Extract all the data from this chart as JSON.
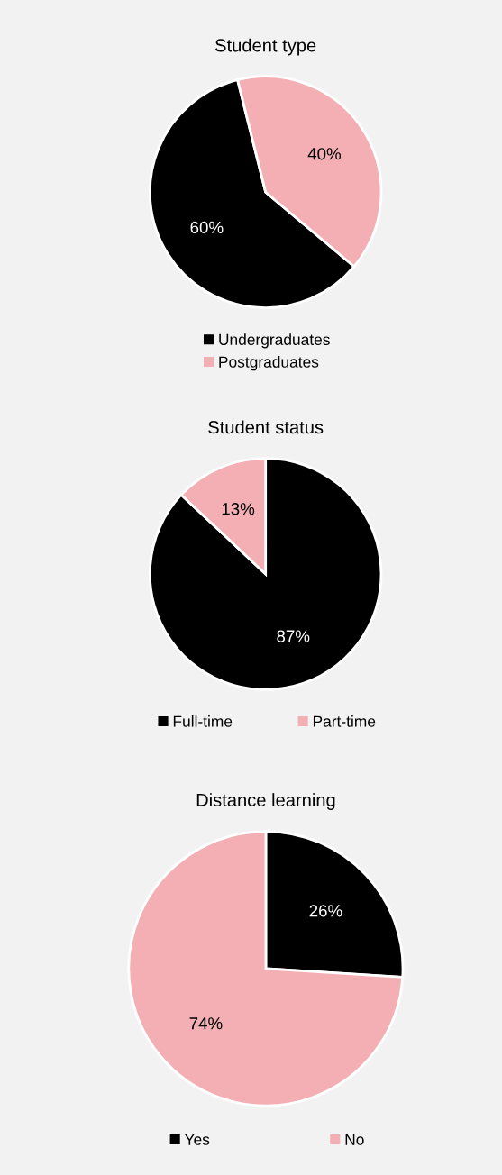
{
  "chart_data": [
    {
      "type": "pie",
      "title": "Student type",
      "categories": [
        "Undergraduates",
        "Postgraduates"
      ],
      "values": [
        60,
        40
      ],
      "colors": [
        "#000000",
        "#f4afb4"
      ],
      "value_labels": [
        "60%",
        "40%"
      ],
      "legend": "bottom"
    },
    {
      "type": "pie",
      "title": "Student status",
      "categories": [
        "Full-time",
        "Part-time"
      ],
      "values": [
        87,
        13
      ],
      "colors": [
        "#000000",
        "#f4afb4"
      ],
      "value_labels": [
        "87%",
        "13%"
      ],
      "legend": "bottom"
    },
    {
      "type": "pie",
      "title": "Distance learning",
      "categories": [
        "Yes",
        "No"
      ],
      "values": [
        26,
        74
      ],
      "colors": [
        "#000000",
        "#f4afb4"
      ],
      "value_labels": [
        "26%",
        "74%"
      ],
      "legend": "bottom"
    }
  ]
}
